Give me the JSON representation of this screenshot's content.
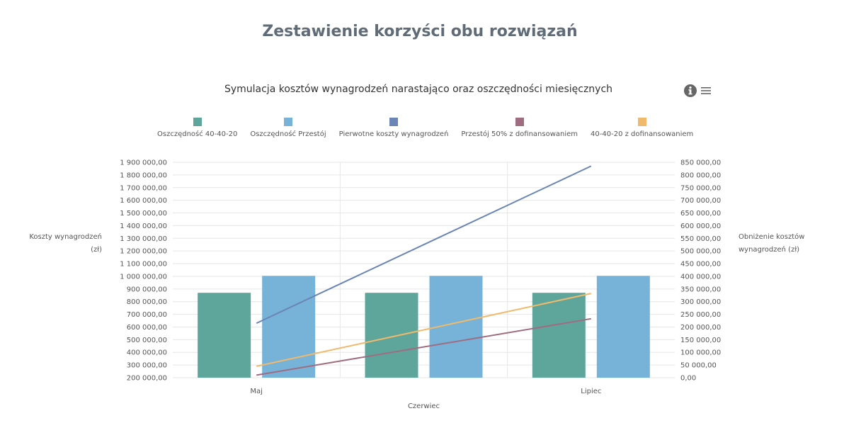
{
  "page": {
    "title": "Zestawienie korzyści obu rozwiązań"
  },
  "chart_data": {
    "type": "bar",
    "title": "Symulacja kosztów wynagrodzeń narastająco oraz oszczędności miesięcznych",
    "categories": [
      "Maj",
      "Czerwiec",
      "Lipiec"
    ],
    "ylabel": "Koszty wynagrodzeń (zł)",
    "y2label": "Obniżenie kosztów wynagrodzeń (zł)",
    "ylim": [
      200000,
      1900000
    ],
    "y2lim": [
      0,
      850000
    ],
    "yticks": [
      "1 900 000,00",
      "1 800 000,00",
      "1 700 000,00",
      "1 600 000,00",
      "1 500 000,00",
      "1 400 000,00",
      "1 300 000,00",
      "1 200 000,00",
      "1 100 000,00",
      "1 000 000,00",
      "900 000,00",
      "800 000,00",
      "700 000,00",
      "600 000,00",
      "500 000,00",
      "400 000,00",
      "300 000,00",
      "200 000,00"
    ],
    "y2ticks": [
      "850 000,00",
      "800 000,00",
      "750 000,00",
      "700 000,00",
      "650 000,00",
      "600 000,00",
      "550 000,00",
      "500 000,00",
      "450 000,00",
      "400 000,00",
      "350 000,00",
      "300 000,00",
      "250 000,00",
      "200 000,00",
      "150 000,00",
      "100 000,00",
      "50 000,00",
      "0,00"
    ],
    "grid": true,
    "legend_position": "top",
    "series": [
      {
        "name": "Oszczędność 40-40-20",
        "type": "bar",
        "axis": "right",
        "color": "#5ea69b",
        "values": [
          335000,
          335000,
          335000
        ]
      },
      {
        "name": "Oszczędność Przestój",
        "type": "bar",
        "axis": "right",
        "color": "#77b3d9",
        "values": [
          402000,
          402000,
          402000
        ]
      },
      {
        "name": "Pierwotne koszty wynagrodzeń",
        "type": "line",
        "axis": "left",
        "color": "#6a85b6",
        "values": [
          630000,
          null,
          1870000
        ]
      },
      {
        "name": "Przestój 50% z dofinansowaniem",
        "type": "line",
        "axis": "left",
        "color": "#a06c80",
        "values": [
          220000,
          null,
          665000
        ]
      },
      {
        "name": "40-40-20 z dofinansowaniem",
        "type": "line",
        "axis": "left",
        "color": "#f0b96b",
        "values": [
          290000,
          null,
          865000
        ]
      }
    ]
  },
  "icons": {
    "info": "info-icon",
    "menu": "hamburger-menu-icon"
  }
}
